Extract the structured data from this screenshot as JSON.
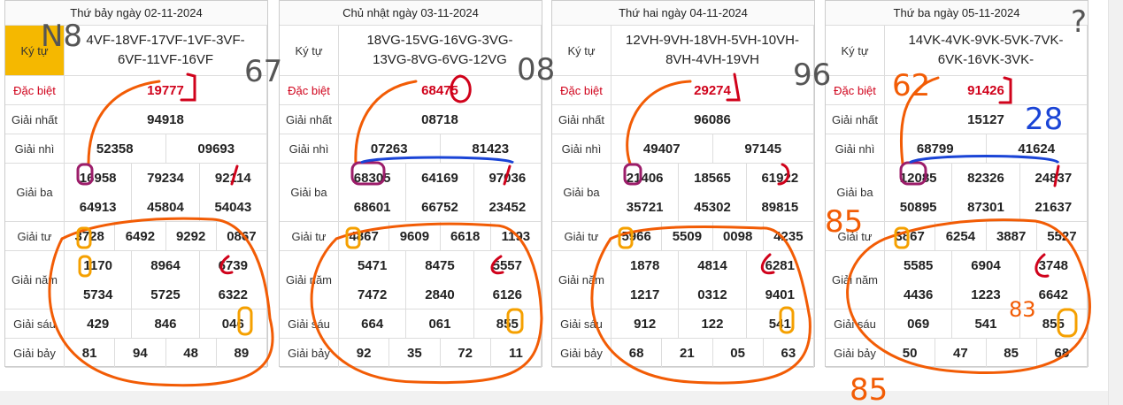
{
  "labels": [
    "Ký tự",
    "Đặc biệt",
    "Giải nhất",
    "Giải nhì",
    "Giải ba",
    "Giải tư",
    "Giải năm",
    "Giải sáu",
    "Giải bảy"
  ],
  "days": [
    {
      "title": "Thứ bảy ngày 02-11-2024",
      "rows": [
        [
          "4VF-18VF-17VF-1VF-3VF-6VF-11VF-16VF"
        ],
        [
          "19777"
        ],
        [
          "94918"
        ],
        [
          "52358",
          "09693"
        ],
        [
          "16958",
          "79234",
          "92114",
          "64913",
          "45804",
          "54043"
        ],
        [
          "3728",
          "6492",
          "9292",
          "0867"
        ],
        [
          "1170",
          "8964",
          "6739",
          "5734",
          "5725",
          "6322"
        ],
        [
          "429",
          "846",
          "046"
        ],
        [
          "81",
          "94",
          "48",
          "89"
        ]
      ]
    },
    {
      "title": "Chủ nhật ngày 03-11-2024",
      "rows": [
        [
          "18VG-15VG-16VG-3VG-13VG-8VG-6VG-12VG"
        ],
        [
          "68475"
        ],
        [
          "08718"
        ],
        [
          "07263",
          "81423"
        ],
        [
          "68305",
          "64169",
          "97036",
          "68601",
          "66752",
          "23452"
        ],
        [
          "4867",
          "9609",
          "6618",
          "1193"
        ],
        [
          "5471",
          "8475",
          "5557",
          "7472",
          "2840",
          "6126"
        ],
        [
          "664",
          "061",
          "855"
        ],
        [
          "92",
          "35",
          "72",
          "11"
        ]
      ]
    },
    {
      "title": "Thứ hai ngày 04-11-2024",
      "rows": [
        [
          "12VH-9VH-18VH-5VH-10VH-8VH-4VH-19VH"
        ],
        [
          "29274"
        ],
        [
          "96086"
        ],
        [
          "49407",
          "97145"
        ],
        [
          "21406",
          "18565",
          "61922",
          "35721",
          "45302",
          "89815"
        ],
        [
          "5966",
          "5509",
          "0098",
          "4235"
        ],
        [
          "1878",
          "4814",
          "6281",
          "1217",
          "0312",
          "9401"
        ],
        [
          "912",
          "122",
          "541"
        ],
        [
          "68",
          "21",
          "05",
          "63"
        ]
      ]
    },
    {
      "title": "Thứ ba ngày 05-11-2024",
      "rows": [
        [
          "14VK-4VK-9VK-5VK-7VK-6VK-16VK-3VK-"
        ],
        [
          "91426"
        ],
        [
          "15127"
        ],
        [
          "68799",
          "41624"
        ],
        [
          "12085",
          "82326",
          "24837",
          "50895",
          "87301",
          "21637"
        ],
        [
          "3867",
          "6254",
          "3887",
          "5527"
        ],
        [
          "5585",
          "6904",
          "3748",
          "4436",
          "1223",
          "6642"
        ],
        [
          "069",
          "541",
          "855"
        ],
        [
          "50",
          "47",
          "85",
          "68"
        ]
      ]
    }
  ],
  "annotations": [
    "N8",
    "67",
    "08",
    "96",
    "62",
    "28",
    "85",
    "83",
    "85",
    "?"
  ]
}
